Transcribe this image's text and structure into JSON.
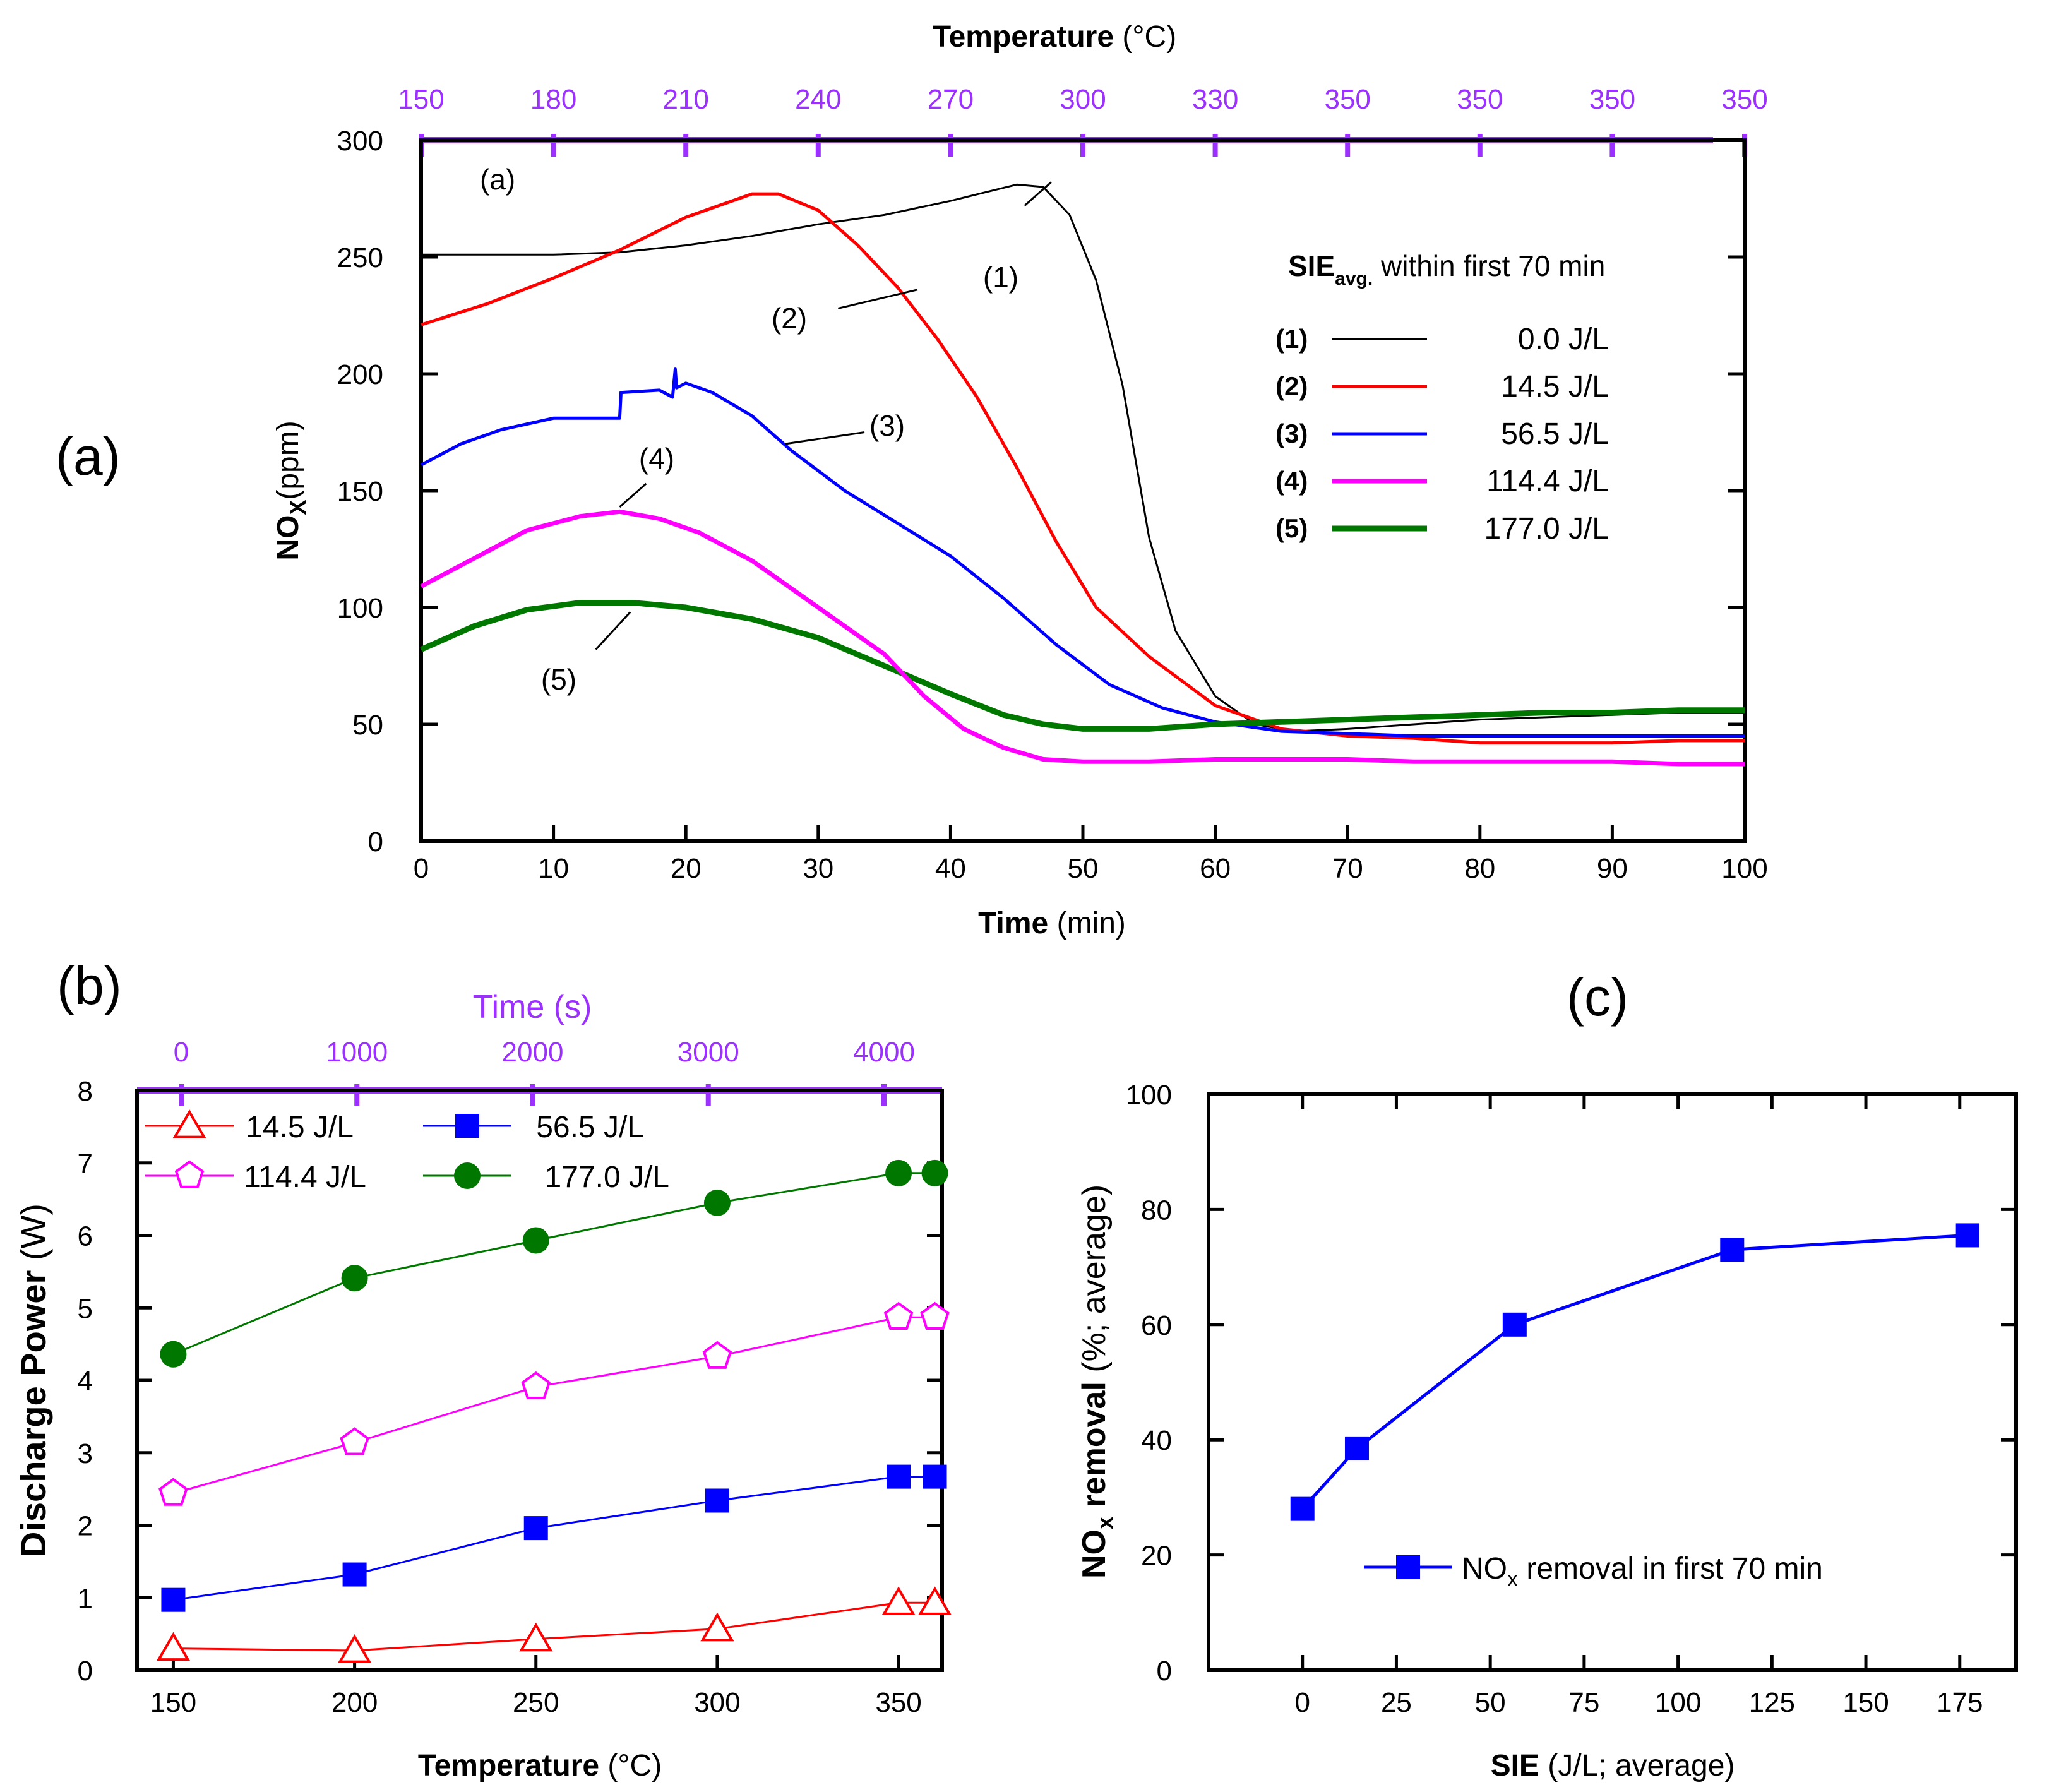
{
  "colors": {
    "purple": "#9b30ff",
    "black": "#000000",
    "red": "#ff0000",
    "blue": "#0000ff",
    "magenta": "#ff00ff",
    "green": "#007800"
  },
  "chart_data": [
    {
      "panel": "(a)",
      "type": "line",
      "inner_label": "(a)",
      "xlabel": "Time (min)",
      "xlabel_bold": "Time",
      "xlabel_rest": " (min)",
      "ylabel_bold": "NOx",
      "ylabel_main": "NO",
      "ylabel_sub": "X",
      "ylabel_rest": "(ppm)",
      "xlim": [
        0,
        100
      ],
      "ylim": [
        0,
        300
      ],
      "xticks": [
        0,
        10,
        20,
        30,
        40,
        50,
        60,
        70,
        80,
        90,
        100
      ],
      "yticks": [
        0,
        50,
        100,
        150,
        200,
        250,
        300
      ],
      "top_axis": {
        "label_bold": "Temperature",
        "label_rest": " (°C)",
        "ticks_at_time": [
          0,
          10,
          20,
          30,
          40,
          50,
          60,
          70,
          80,
          90,
          100
        ],
        "tick_labels": [
          "150",
          "180",
          "210",
          "240",
          "270",
          "300",
          "330",
          "350",
          "350",
          "350",
          "350"
        ]
      },
      "legend_title_main": "SIE",
      "legend_title_sub": "avg.",
      "legend_title_rest": " within first 70 min",
      "series": [
        {
          "id": "(1)",
          "name": "0.0 J/L",
          "color": "#000000",
          "width": 3,
          "x": [
            0,
            5,
            10,
            15,
            20,
            25,
            30,
            35,
            40,
            45,
            47,
            49,
            51,
            53,
            55,
            57,
            60,
            63,
            66,
            70,
            75,
            80,
            85,
            90,
            95,
            100
          ],
          "y": [
            251,
            251,
            251,
            252,
            255,
            259,
            264,
            268,
            274,
            281,
            280,
            268,
            240,
            195,
            130,
            90,
            62,
            50,
            47,
            48,
            50,
            52,
            53,
            54,
            55,
            55
          ]
        },
        {
          "id": "(2)",
          "name": "14.5 J/L",
          "color": "#ff0000",
          "width": 5,
          "x": [
            0,
            5,
            10,
            15,
            20,
            25,
            27,
            30,
            33,
            36,
            39,
            42,
            45,
            48,
            51,
            55,
            60,
            65,
            70,
            75,
            80,
            85,
            90,
            95,
            100
          ],
          "y": [
            221,
            230,
            241,
            253,
            267,
            277,
            277,
            270,
            255,
            237,
            215,
            190,
            160,
            128,
            100,
            79,
            58,
            48,
            45,
            44,
            42,
            42,
            42,
            43,
            43
          ]
        },
        {
          "id": "(3)",
          "name": "56.5 J/L",
          "color": "#0000ff",
          "width": 5,
          "x": [
            0,
            3,
            6,
            10,
            12,
            15,
            15.1,
            18,
            19,
            19.2,
            19.3,
            20,
            22,
            25,
            28,
            32,
            36,
            40,
            44,
            48,
            52,
            56,
            60,
            65,
            70,
            75,
            80,
            85,
            90,
            95,
            100
          ],
          "y": [
            161,
            170,
            176,
            181,
            181,
            181,
            192,
            193,
            190,
            202,
            194,
            196,
            192,
            182,
            167,
            150,
            136,
            122,
            104,
            84,
            67,
            57,
            51,
            47,
            46,
            45,
            45,
            45,
            45,
            45,
            45
          ]
        },
        {
          "id": "(4)",
          "name": "114.4 J/L",
          "color": "#ff00ff",
          "width": 7,
          "x": [
            0,
            4,
            8,
            12,
            15,
            18,
            21,
            25,
            30,
            35,
            38,
            41,
            44,
            47,
            50,
            55,
            60,
            65,
            70,
            75,
            80,
            85,
            90,
            95,
            100
          ],
          "y": [
            109,
            121,
            133,
            139,
            141,
            138,
            132,
            120,
            100,
            80,
            62,
            48,
            40,
            35,
            34,
            34,
            35,
            35,
            35,
            34,
            34,
            34,
            34,
            33,
            33
          ]
        },
        {
          "id": "(5)",
          "name": "177.0 J/L",
          "color": "#007800",
          "width": 9,
          "x": [
            0,
            4,
            8,
            12,
            16,
            20,
            25,
            30,
            35,
            40,
            44,
            47,
            50,
            55,
            60,
            65,
            70,
            75,
            80,
            85,
            90,
            95,
            100
          ],
          "y": [
            82,
            92,
            99,
            102,
            102,
            100,
            95,
            87,
            75,
            63,
            54,
            50,
            48,
            48,
            50,
            51,
            52,
            53,
            54,
            55,
            55,
            56,
            56
          ]
        }
      ],
      "annotations": [
        {
          "text": "(1)",
          "series": 0
        },
        {
          "text": "(2)",
          "series": 1
        },
        {
          "text": "(3)",
          "series": 2
        },
        {
          "text": "(4)",
          "series": 3
        },
        {
          "text": "(5)",
          "series": 4
        }
      ]
    },
    {
      "panel": "(b)",
      "type": "line",
      "xlabel_bold": "Temperature",
      "xlabel_rest": " (°C)",
      "ylabel": "Discharge Power (W)",
      "ylabel_bold": "Discharge Power",
      "ylabel_rest": " (W)",
      "xlim": [
        140,
        362
      ],
      "ylim": [
        0,
        8
      ],
      "xticks": [
        150,
        200,
        250,
        300,
        350
      ],
      "yticks": [
        0,
        1,
        2,
        3,
        4,
        5,
        6,
        7,
        8
      ],
      "top_axis": {
        "label": "Time (s)",
        "ticks": [
          0,
          1000,
          2000,
          3000,
          4000
        ]
      },
      "x": [
        150,
        200,
        250,
        300,
        350,
        360
      ],
      "series": [
        {
          "name": "14.5 J/L",
          "marker": "triangle-open",
          "color": "#ff0000",
          "values": [
            0.3,
            0.27,
            0.43,
            0.57,
            0.93,
            0.93
          ]
        },
        {
          "name": "56.5 J/L",
          "marker": "square-filled",
          "color": "#0000ff",
          "values": [
            0.97,
            1.32,
            1.96,
            2.34,
            2.67,
            2.67
          ]
        },
        {
          "name": "114.4 J/L",
          "marker": "pentagon-open",
          "color": "#ff00ff",
          "values": [
            2.44,
            3.14,
            3.91,
            4.33,
            4.87,
            4.87
          ]
        },
        {
          "name": "177.0 J/L",
          "marker": "circle-filled",
          "color": "#007800",
          "values": [
            4.36,
            5.41,
            5.93,
            6.45,
            6.86,
            6.86
          ]
        }
      ]
    },
    {
      "panel": "(c)",
      "type": "line",
      "xlabel_bold": "SIE",
      "xlabel_rest": " (J/L; average)",
      "ylabel_bold_main": "NO",
      "ylabel_bold_sub": "x",
      "ylabel_bold_rest": " removal",
      "ylabel_rest": " (%; average)",
      "xlim": [
        -25,
        190
      ],
      "ylim": [
        0,
        100
      ],
      "xticks": [
        0,
        25,
        50,
        75,
        100,
        125,
        150,
        175
      ],
      "yticks": [
        0,
        20,
        40,
        60,
        80,
        100
      ],
      "series": [
        {
          "name": "NOx removal in first 70 min",
          "legend_main": "NO",
          "legend_sub": "x",
          "legend_rest": " removal in first 70 min",
          "marker": "square-filled",
          "color": "#0000ff",
          "x": [
            0,
            14.5,
            56.5,
            114.4,
            177.0
          ],
          "y": [
            28,
            38.5,
            60,
            73,
            75.5
          ]
        }
      ]
    }
  ]
}
